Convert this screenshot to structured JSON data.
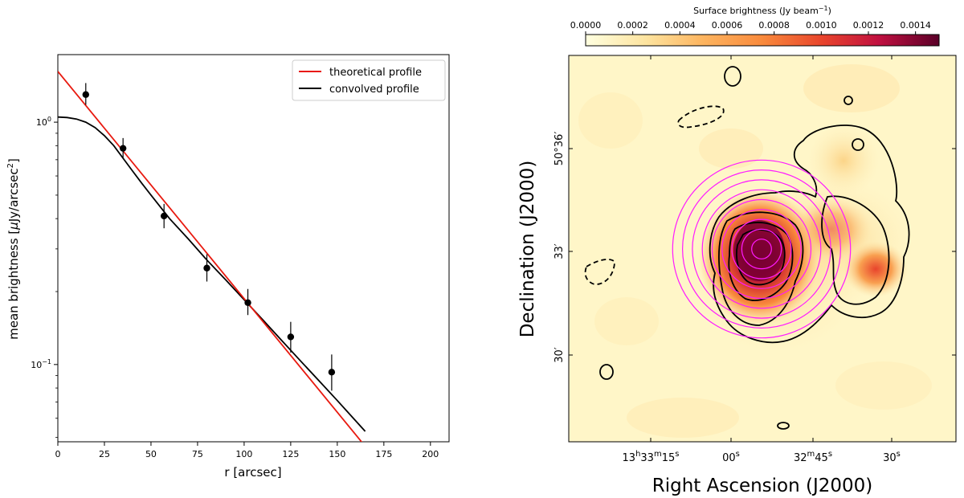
{
  "chart_data": [
    {
      "type": "scatter",
      "xlabel": "r [arcsec]",
      "ylabel": "mean brightness [μJy/arcsec²]",
      "ylabel_main": "mean brightness [",
      "ylabel_mu": "μ",
      "ylabel_unit": "Jy/arcsec",
      "ylabel_sup": "2",
      "ylabel_end": "]",
      "xlim": [
        0,
        210
      ],
      "ylim": [
        0.048,
        1.9
      ],
      "yscale": "log",
      "xticks": [
        0,
        25,
        50,
        75,
        100,
        125,
        150,
        175,
        200
      ],
      "xtick_labels": [
        "0",
        "25",
        "50",
        "75",
        "100",
        "125",
        "150",
        "175",
        "200"
      ],
      "yticks": [
        0.1,
        1.0
      ],
      "ytick_labels": [
        {
          "base": "10",
          "exp": "−1"
        },
        {
          "base": "10",
          "exp": "0"
        }
      ],
      "legend_position": "top-right",
      "series": [
        {
          "name": "theoretical profile",
          "kind": "line",
          "color": "#e8190f",
          "x": [
            0,
            165
          ],
          "y": [
            1.62,
            0.046
          ]
        },
        {
          "name": "convolved profile",
          "kind": "line",
          "color": "#000000",
          "x": [
            0,
            5,
            10,
            15,
            20,
            25,
            30,
            35,
            40,
            45,
            50,
            60,
            70,
            80,
            90,
            100,
            110,
            120,
            130,
            140,
            150,
            165
          ],
          "y": [
            1.05,
            1.045,
            1.03,
            1.0,
            0.95,
            0.88,
            0.8,
            0.71,
            0.63,
            0.56,
            0.5,
            0.4,
            0.33,
            0.27,
            0.224,
            0.185,
            0.153,
            0.126,
            0.104,
            0.086,
            0.071,
            0.053
          ]
        },
        {
          "name": "data",
          "kind": "points",
          "color": "#000000",
          "x": [
            15,
            35,
            57,
            80,
            102,
            125,
            147
          ],
          "y": [
            1.3,
            0.78,
            0.41,
            0.25,
            0.18,
            0.13,
            0.093
          ],
          "yerr_lo": [
            0.12,
            0.07,
            0.045,
            0.03,
            0.02,
            0.018,
            0.015
          ],
          "yerr_hi": [
            0.15,
            0.08,
            0.05,
            0.035,
            0.025,
            0.02,
            0.017
          ]
        }
      ]
    },
    {
      "type": "heatmap",
      "xlabel": "Right Ascension (J2000)",
      "ylabel": "Declination (J2000)",
      "colorbar_label_main": "Surface brightness (Jy beam",
      "colorbar_label_sup": "−1",
      "colorbar_label_end": ")",
      "colorbar_range": [
        0.0,
        0.0015
      ],
      "colorbar_ticks": [
        "0.0000",
        "0.0002",
        "0.0004",
        "0.0006",
        "0.0008",
        "0.0010",
        "0.0012",
        "0.0014"
      ],
      "colorbar_tick_values": [
        0.0,
        0.0002,
        0.0004,
        0.0006,
        0.0008,
        0.001,
        0.0012,
        0.0014
      ],
      "colormap": [
        "#ffffe0",
        "#fde4a0",
        "#fdb560",
        "#f98a3c",
        "#e8442c",
        "#c01040",
        "#7a0032"
      ],
      "ra_ticks": [
        {
          "h": "13",
          "hs": "h",
          "m": "33",
          "ms": "m",
          "s": "15",
          "ss": "s"
        },
        {
          "s": "00",
          "ss": "s"
        },
        {
          "m": "32",
          "ms": "m",
          "s": "45",
          "ss": "s"
        },
        {
          "s": "30",
          "ss": "s"
        }
      ],
      "dec_ticks": [
        {
          "label": "50°36′",
          "deg": "50°",
          "min": "36′"
        },
        {
          "label": "33′"
        },
        {
          "label": "30′"
        }
      ],
      "source_peak": 0.0015,
      "contour_color": "#000000",
      "annulus_color": "#ff1aff",
      "annulus_count": 9
    }
  ]
}
